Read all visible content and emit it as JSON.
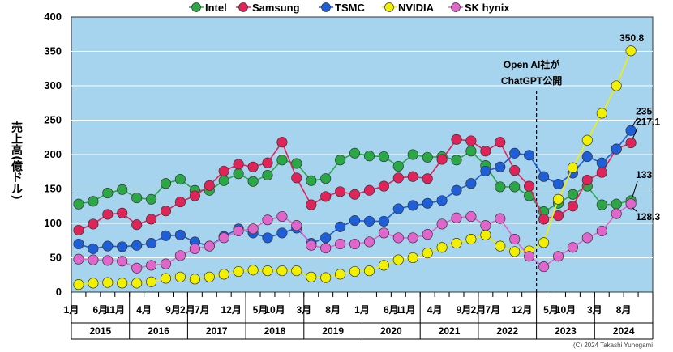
{
  "chart_data": {
    "type": "line",
    "ylabel": "売上高(億ドル)",
    "ylim": [
      0,
      400
    ],
    "yticks": [
      0,
      50,
      100,
      150,
      200,
      250,
      300,
      350,
      400
    ],
    "grid": true,
    "legend_position": "top",
    "quarters": 40,
    "x_tick_labels": [
      {
        "q": 0,
        "text": "1月"
      },
      {
        "q": 2,
        "text": "6月"
      },
      {
        "q": 3,
        "text": "11月"
      },
      {
        "q": 5,
        "text": "4月"
      },
      {
        "q": 7,
        "text": "9月"
      },
      {
        "q": 8,
        "text": "2月"
      },
      {
        "q": 9,
        "text": "7月"
      },
      {
        "q": 11,
        "text": "12月"
      },
      {
        "q": 13,
        "text": "5月"
      },
      {
        "q": 14,
        "text": "10月"
      },
      {
        "q": 16,
        "text": "3月"
      },
      {
        "q": 18,
        "text": "8月"
      },
      {
        "q": 20,
        "text": "1月"
      },
      {
        "q": 22,
        "text": "6月"
      },
      {
        "q": 23,
        "text": "11月"
      },
      {
        "q": 25,
        "text": "4月"
      },
      {
        "q": 27,
        "text": "9月"
      },
      {
        "q": 28,
        "text": "2月"
      },
      {
        "q": 29,
        "text": "7月"
      },
      {
        "q": 31,
        "text": "12月"
      },
      {
        "q": 33,
        "text": "5月"
      },
      {
        "q": 34,
        "text": "10月"
      },
      {
        "q": 36,
        "text": "3月"
      },
      {
        "q": 38,
        "text": "8月"
      }
    ],
    "years": [
      "2015",
      "2016",
      "2017",
      "2018",
      "2019",
      "2020",
      "2021",
      "2022",
      "2023",
      "2024"
    ],
    "series": [
      {
        "name": "Intel",
        "color": "#2aa845",
        "values": [
          128,
          132,
          144,
          149,
          137,
          135,
          158,
          164,
          148,
          148,
          162,
          172,
          161,
          170,
          192,
          187,
          162,
          165,
          192,
          202,
          198,
          197,
          183,
          200,
          196,
          197,
          192,
          205,
          184,
          153,
          153,
          140,
          117,
          129,
          142,
          154,
          127,
          128,
          133
        ]
      },
      {
        "name": "Samsung",
        "color": "#e0245a",
        "values": [
          90,
          99,
          113,
          115,
          98,
          106,
          118,
          131,
          140,
          155,
          176,
          186,
          182,
          188,
          218,
          166,
          127,
          139,
          146,
          142,
          148,
          154,
          166,
          168,
          165,
          193,
          222,
          220,
          205,
          218,
          177,
          154,
          106,
          111,
          125,
          163,
          174,
          208,
          217.1
        ]
      },
      {
        "name": "TSMC",
        "color": "#1e5ed8",
        "values": [
          70,
          63,
          67,
          66,
          68,
          71,
          82,
          83,
          73,
          67,
          81,
          92,
          86,
          79,
          86,
          93,
          71,
          79,
          95,
          104,
          103,
          103,
          121,
          126,
          129,
          133,
          148,
          158,
          176,
          182,
          202,
          199,
          168,
          157,
          173,
          197,
          188,
          208,
          235
        ]
      },
      {
        "name": "NVIDIA",
        "color": "#f0f000",
        "values": [
          11,
          13,
          14,
          13,
          13,
          15,
          20,
          22,
          19,
          22,
          26,
          30,
          32,
          31,
          31,
          31,
          22,
          21,
          26,
          30,
          31,
          39,
          47,
          50,
          57,
          65,
          71,
          77,
          83,
          67,
          59,
          60,
          72,
          135,
          181,
          221,
          260,
          300,
          350.8
        ]
      },
      {
        "name": "SK hynix",
        "color": "#e066cc",
        "values": [
          48,
          47,
          46,
          45,
          35,
          39,
          41,
          53,
          63,
          67,
          79,
          89,
          92,
          105,
          110,
          97,
          68,
          64,
          70,
          70,
          73,
          86,
          79,
          79,
          84,
          99,
          108,
          110,
          97,
          107,
          77,
          52,
          37,
          52,
          65,
          79,
          89,
          114,
          128.3
        ]
      }
    ],
    "annotations": {
      "event_line1": "Open AI社が",
      "event_line2": "ChatGPT公開",
      "event_q": 31.5,
      "end_labels": [
        {
          "series": "NVIDIA",
          "text": "350.8"
        },
        {
          "series": "TSMC",
          "text": "235"
        },
        {
          "series": "Samsung",
          "text": "217.1"
        },
        {
          "series": "Intel",
          "text": "133"
        },
        {
          "series": "SK hynix",
          "text": "128.3"
        }
      ]
    },
    "credit": "(C) 2024 Takashi Yunogami"
  }
}
